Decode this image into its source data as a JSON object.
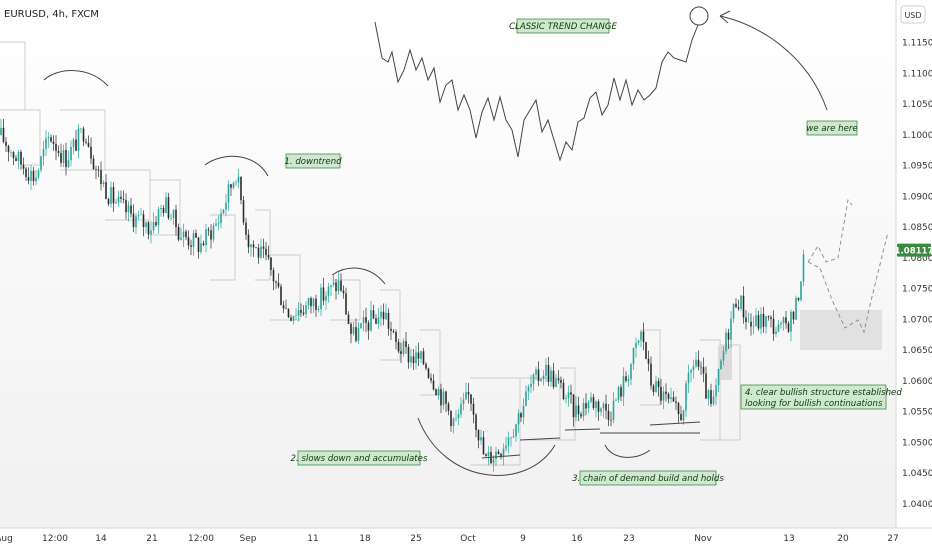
{
  "chart_data": {
    "type": "candlestick",
    "title": "EURUSD, 4h, FXCM",
    "currency_label": "USD",
    "y_ticks": [
      "1.11500",
      "1.11000",
      "1.10500",
      "1.10000",
      "1.09500",
      "1.09000",
      "1.08500",
      "1.08000",
      "1.07500",
      "1.07000",
      "1.06500",
      "1.06000",
      "1.05500",
      "1.05000",
      "1.04500",
      "1.04000"
    ],
    "ylim": [
      1.0385,
      1.1195
    ],
    "x_ticks": [
      "Aug",
      "12:00",
      "14",
      "21",
      "12:00",
      "Sep",
      "11",
      "18",
      "25",
      "Oct",
      "9",
      "16",
      "23",
      "Nov",
      "13",
      "20",
      "27"
    ],
    "last_price": "1.08117",
    "colors": {
      "up": "#26a69a",
      "down": "#2b2b2b",
      "last_price_bg": "#3a8a3f",
      "note_bg": "#cfe8cf",
      "note_border": "#2e7d32",
      "zone": "#d9d9d9"
    },
    "price_path": [
      [
        0,
        1.1
      ],
      [
        18,
        1.096
      ],
      [
        35,
        1.093
      ],
      [
        50,
        1.1
      ],
      [
        65,
        1.096
      ],
      [
        85,
        1.101
      ],
      [
        97,
        1.094
      ],
      [
        110,
        1.09
      ],
      [
        130,
        1.087
      ],
      [
        150,
        1.085
      ],
      [
        165,
        1.089
      ],
      [
        180,
        1.084
      ],
      [
        200,
        1.082
      ],
      [
        218,
        1.086
      ],
      [
        236,
        1.094
      ],
      [
        248,
        1.083
      ],
      [
        268,
        1.079
      ],
      [
        288,
        1.071
      ],
      [
        305,
        1.072
      ],
      [
        325,
        1.074
      ],
      [
        340,
        1.076
      ],
      [
        352,
        1.067
      ],
      [
        372,
        1.07
      ],
      [
        385,
        1.071
      ],
      [
        395,
        1.066
      ],
      [
        410,
        1.064
      ],
      [
        425,
        1.063
      ],
      [
        440,
        1.058
      ],
      [
        455,
        1.053
      ],
      [
        470,
        1.058
      ],
      [
        485,
        1.047
      ],
      [
        500,
        1.049
      ],
      [
        515,
        1.053
      ],
      [
        530,
        1.059
      ],
      [
        545,
        1.062
      ],
      [
        560,
        1.059
      ],
      [
        575,
        1.055
      ],
      [
        590,
        1.057
      ],
      [
        610,
        1.055
      ],
      [
        625,
        1.06
      ],
      [
        642,
        1.068
      ],
      [
        650,
        1.06
      ],
      [
        665,
        1.057
      ],
      [
        680,
        1.054
      ],
      [
        695,
        1.064
      ],
      [
        712,
        1.055
      ],
      [
        725,
        1.066
      ],
      [
        737,
        1.074
      ],
      [
        750,
        1.069
      ],
      [
        765,
        1.07
      ],
      [
        780,
        1.068
      ],
      [
        795,
        1.071
      ],
      [
        805,
        1.081
      ]
    ],
    "annotations": [
      {
        "id": "classic",
        "text": "CLASSIC TREND CHANGE"
      },
      {
        "id": "we-are-here",
        "text": "we are here"
      },
      {
        "id": "downtrend",
        "text": "1. downtrend"
      },
      {
        "id": "slows-down",
        "text": "2. slows down and accumulates"
      },
      {
        "id": "chain-demand",
        "text": "3. chain of demand build and holds"
      },
      {
        "id": "bullish-1",
        "text": "4. clear bullish structure established"
      },
      {
        "id": "bullish-2",
        "text": "looking for bullish continuations"
      }
    ]
  }
}
